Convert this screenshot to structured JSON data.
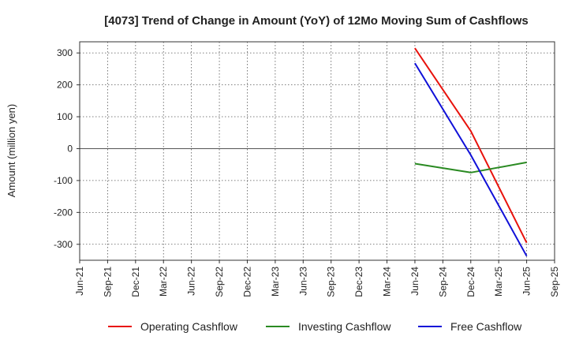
{
  "chart_data": {
    "type": "line",
    "title": "[4073]  Trend of Change in Amount (YoY) of 12Mo Moving Sum of Cashflows",
    "xlabel": "",
    "ylabel": "Amount (million yen)",
    "categories": [
      "Jun-21",
      "Sep-21",
      "Dec-21",
      "Mar-22",
      "Jun-22",
      "Sep-22",
      "Dec-22",
      "Mar-23",
      "Jun-23",
      "Sep-23",
      "Dec-23",
      "Mar-24",
      "Jun-24",
      "Sep-24",
      "Dec-24",
      "Mar-25",
      "Jun-25",
      "Sep-25"
    ],
    "yticks": [
      300,
      200,
      100,
      0,
      -100,
      -200,
      -300
    ],
    "ylim": [
      -350,
      335
    ],
    "grid": true,
    "legend_position": "bottom",
    "series": [
      {
        "name": "Operating Cashflow",
        "color": "#e8120c",
        "x": [
          "Jun-24",
          "Dec-24",
          "Jun-25"
        ],
        "values": [
          315,
          55,
          -295
        ]
      },
      {
        "name": "Investing Cashflow",
        "color": "#2a8a22",
        "x": [
          "Jun-24",
          "Dec-24",
          "Jun-25"
        ],
        "values": [
          -47,
          -75,
          -43
        ]
      },
      {
        "name": "Free Cashflow",
        "color": "#1010d8",
        "x": [
          "Jun-24",
          "Dec-24",
          "Jun-25"
        ],
        "values": [
          268,
          -20,
          -337
        ]
      }
    ]
  }
}
